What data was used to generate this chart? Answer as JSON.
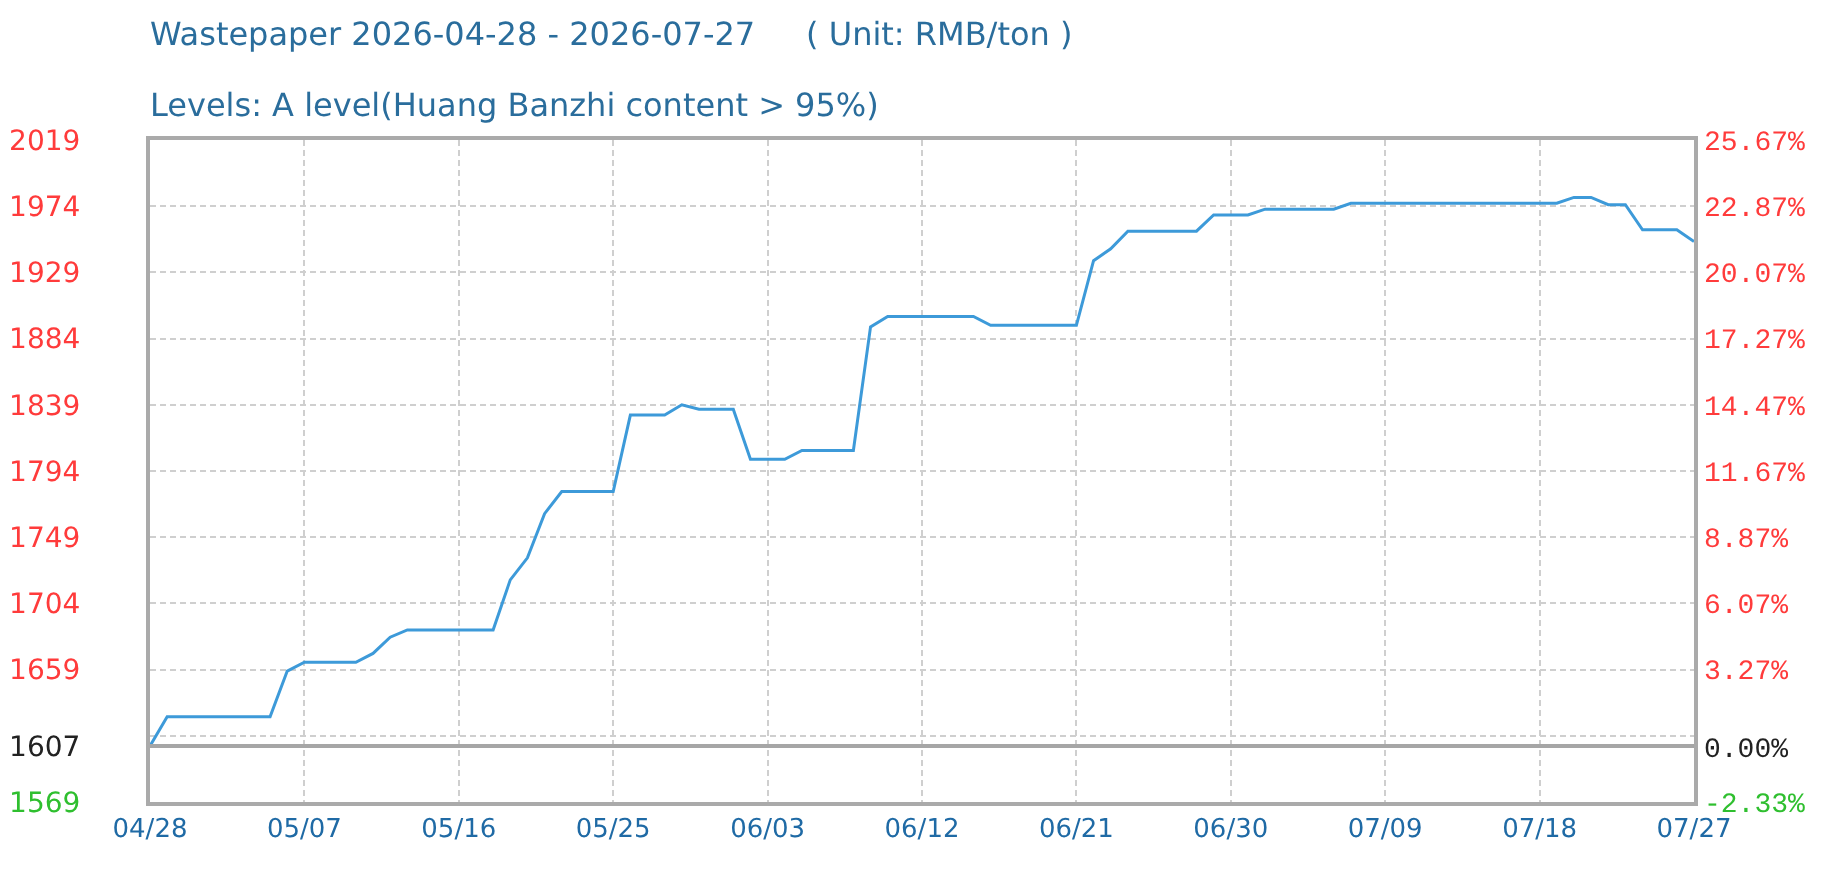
{
  "chart_data": {
    "type": "line",
    "title": "Wastepaper 2026-04-28 - 2026-07-27     ( Unit: RMB/ton )",
    "subtitle": "Levels: A level(Huang Banzhi content > 95%)",
    "x": [
      "2026-04-28",
      "2026-04-29",
      "2026-05-05",
      "2026-05-06",
      "2026-05-07",
      "2026-05-10",
      "2026-05-11",
      "2026-05-12",
      "2026-05-13",
      "2026-05-18",
      "2026-05-19",
      "2026-05-20",
      "2026-05-21",
      "2026-05-22",
      "2026-05-25",
      "2026-05-26",
      "2026-05-28",
      "2026-05-29",
      "2026-05-30",
      "2026-06-01",
      "2026-06-02",
      "2026-06-04",
      "2026-06-05",
      "2026-06-08",
      "2026-06-09",
      "2026-06-10",
      "2026-06-15",
      "2026-06-16",
      "2026-06-21",
      "2026-06-22",
      "2026-06-23",
      "2026-06-24",
      "2026-06-28",
      "2026-06-29",
      "2026-07-01",
      "2026-07-02",
      "2026-07-06",
      "2026-07-07",
      "2026-07-19",
      "2026-07-20",
      "2026-07-21",
      "2026-07-22",
      "2026-07-23",
      "2026-07-24",
      "2026-07-26",
      "2026-07-27"
    ],
    "values": [
      1607,
      1627,
      1627,
      1658,
      1664,
      1664,
      1670,
      1681,
      1686,
      1686,
      1720,
      1735,
      1765,
      1780,
      1780,
      1832,
      1832,
      1839,
      1836,
      1836,
      1802,
      1802,
      1808,
      1808,
      1892,
      1899,
      1899,
      1893,
      1893,
      1937,
      1945,
      1957,
      1957,
      1968,
      1968,
      1972,
      1972,
      1976,
      1976,
      1980,
      1980,
      1975,
      1975,
      1958,
      1958,
      1950
    ],
    "color": "#3d9ad9",
    "xlim": [
      "2026-04-28",
      "2026-07-27"
    ],
    "xticks": [
      {
        "value": "2026-04-28",
        "label": "04/28"
      },
      {
        "value": "2026-05-07",
        "label": "05/07"
      },
      {
        "value": "2026-05-16",
        "label": "05/16"
      },
      {
        "value": "2026-05-25",
        "label": "05/25"
      },
      {
        "value": "2026-06-03",
        "label": "06/03"
      },
      {
        "value": "2026-06-12",
        "label": "06/12"
      },
      {
        "value": "2026-06-21",
        "label": "06/21"
      },
      {
        "value": "2026-06-30",
        "label": "06/30"
      },
      {
        "value": "2026-07-09",
        "label": "07/09"
      },
      {
        "value": "2026-07-18",
        "label": "07/18"
      },
      {
        "value": "2026-07-27",
        "label": "07/27"
      }
    ],
    "ylim": [
      1569,
      2019
    ],
    "yticks": [
      1569,
      1607,
      {
        "value": 1614,
        "label": null
      },
      1659,
      1704,
      1749,
      1794,
      1839,
      1884,
      1929,
      1974,
      2019
    ],
    "y2lim": [
      -2.33,
      25.67
    ],
    "y2ticks": [
      {
        "value": -2.33,
        "label": "-2.33%"
      },
      {
        "value": 0,
        "label": "0.00%"
      },
      {
        "value": 3.27,
        "label": "3.27%"
      },
      {
        "value": 6.07,
        "label": "6.07%"
      },
      {
        "value": 8.87,
        "label": "8.87%"
      },
      {
        "value": 11.67,
        "label": "11.67%"
      },
      {
        "value": 14.47,
        "label": "14.47%"
      },
      {
        "value": 17.27,
        "label": "17.27%"
      },
      {
        "value": 20.07,
        "label": "20.07%"
      },
      {
        "value": 22.87,
        "label": "22.87%"
      },
      {
        "value": 25.67,
        "label": "25.67%"
      }
    ],
    "ref_lines": [
      {
        "axis": "y",
        "value": 1607,
        "color": "#a6a6a6"
      }
    ],
    "grid": true,
    "marker": "none",
    "line_style": "solid"
  }
}
